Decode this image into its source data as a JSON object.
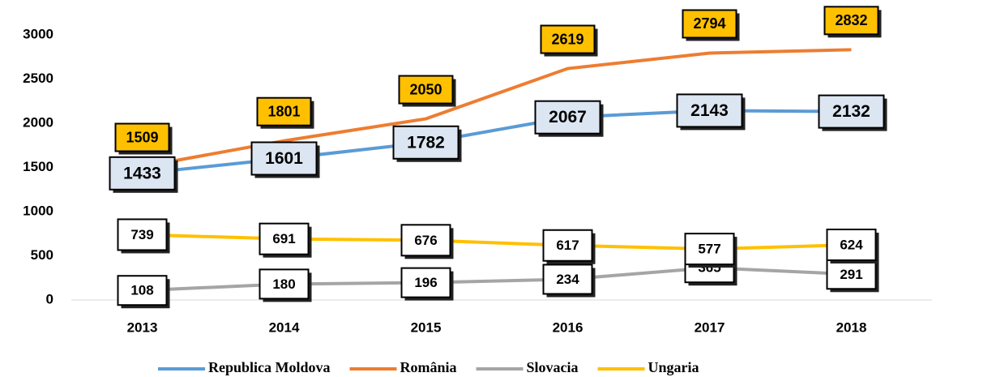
{
  "chart_data": {
    "type": "line",
    "categories": [
      "2013",
      "2014",
      "2015",
      "2016",
      "2017",
      "2018"
    ],
    "series": [
      {
        "name": "Republica Moldova",
        "color": "#5b9bd5",
        "values": [
          1433,
          1601,
          1782,
          2067,
          2143,
          2132
        ]
      },
      {
        "name": "România",
        "color": "#ed7d31",
        "values": [
          1509,
          1801,
          2050,
          2619,
          2794,
          2832
        ]
      },
      {
        "name": "Slovacia",
        "color": "#a5a5a5",
        "values": [
          108,
          180,
          196,
          234,
          365,
          291
        ]
      },
      {
        "name": "Ungaria",
        "color": "#ffc000",
        "values": [
          739,
          691,
          676,
          617,
          577,
          624
        ]
      }
    ],
    "ylim": [
      0,
      3000
    ],
    "yticks": [
      0,
      500,
      1000,
      1500,
      2000,
      2500,
      3000
    ],
    "grid": false,
    "legend": "bottom"
  }
}
